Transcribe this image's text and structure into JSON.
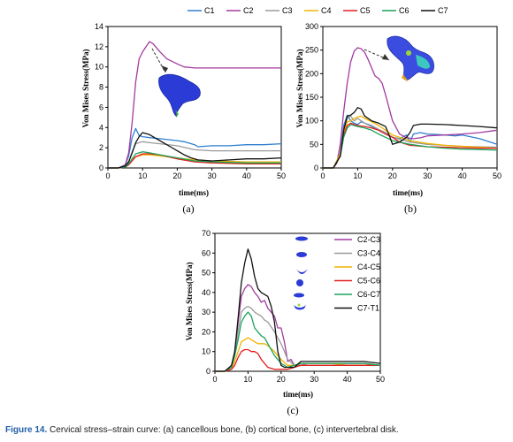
{
  "legend_top": [
    "C1",
    "C2",
    "C3",
    "C4",
    "C5",
    "C6",
    "C7"
  ],
  "colors": {
    "C1": "#2f7fd0",
    "C2": "#a23ba0",
    "C3": "#9a9a9a",
    "C4": "#f0b400",
    "C5": "#e21f1f",
    "C6": "#1aa35b",
    "C7": "#111111"
  },
  "caption": {
    "figure_number": "Figure 14.",
    "text": "Cervical stress–strain curve: (a) cancellous bone, (b) cortical bone, (c) intervertebral disk."
  },
  "chart_data": [
    {
      "id": "a",
      "panel_label": "(a)",
      "type": "line",
      "xlabel": "time(ms)",
      "ylabel": "Von Mises Stress(MPa)",
      "xlim": [
        0,
        50
      ],
      "ylim": [
        0,
        14
      ],
      "xticks": [
        0,
        10,
        20,
        30,
        40,
        50
      ],
      "yticks": [
        0,
        2,
        4,
        6,
        8,
        10,
        12,
        14
      ],
      "series": [
        {
          "name": "C1",
          "x": [
            0,
            3,
            5,
            6,
            7,
            8,
            9,
            10,
            12,
            15,
            20,
            22,
            25,
            26,
            30,
            35,
            40,
            45,
            50
          ],
          "y": [
            0,
            0,
            0.3,
            1.2,
            3.0,
            3.9,
            3.2,
            3.1,
            3.0,
            2.9,
            2.7,
            2.6,
            2.3,
            2.1,
            2.2,
            2.2,
            2.3,
            2.3,
            2.4
          ]
        },
        {
          "name": "C2",
          "x": [
            0,
            3,
            5,
            6,
            7,
            8,
            9,
            10,
            11,
            12,
            13,
            15,
            17,
            20,
            22,
            25,
            30,
            35,
            40,
            45,
            50
          ],
          "y": [
            0,
            0,
            0.3,
            1.5,
            4.5,
            8.5,
            10.8,
            11.5,
            12.0,
            12.5,
            12.3,
            11.5,
            10.8,
            10.3,
            10.0,
            9.9,
            9.9,
            9.9,
            9.9,
            9.9,
            9.9
          ]
        },
        {
          "name": "C3",
          "x": [
            0,
            3,
            5,
            6,
            7,
            8,
            9,
            10,
            12,
            15,
            20,
            25,
            30,
            35,
            40,
            45,
            50
          ],
          "y": [
            0,
            0,
            0.2,
            0.6,
            1.6,
            2.4,
            2.5,
            2.6,
            2.5,
            2.4,
            2.2,
            1.8,
            1.7,
            1.7,
            1.7,
            1.7,
            1.7
          ]
        },
        {
          "name": "C4",
          "x": [
            0,
            3,
            5,
            6,
            7,
            8,
            10,
            12,
            15,
            20,
            25,
            30,
            40,
            50
          ],
          "y": [
            0,
            0,
            0.1,
            0.4,
            0.8,
            1.1,
            1.3,
            1.3,
            1.2,
            1.0,
            0.8,
            0.7,
            0.6,
            0.6
          ]
        },
        {
          "name": "C5",
          "x": [
            0,
            3,
            5,
            6,
            7,
            8,
            10,
            12,
            15,
            20,
            25,
            30,
            40,
            50
          ],
          "y": [
            0,
            0,
            0.1,
            0.3,
            0.7,
            1.1,
            1.4,
            1.4,
            1.3,
            0.9,
            0.6,
            0.5,
            0.4,
            0.4
          ]
        },
        {
          "name": "C6",
          "x": [
            0,
            3,
            5,
            6,
            7,
            8,
            10,
            12,
            15,
            20,
            25,
            30,
            40,
            50
          ],
          "y": [
            0,
            0,
            0.1,
            0.4,
            0.9,
            1.4,
            1.6,
            1.5,
            1.3,
            1.0,
            0.7,
            0.6,
            0.5,
            0.5
          ]
        },
        {
          "name": "C7",
          "x": [
            0,
            3,
            5,
            6,
            7,
            8,
            9,
            10,
            11,
            12,
            14,
            16,
            18,
            20,
            22,
            24,
            26,
            30,
            35,
            40,
            45,
            50
          ],
          "y": [
            0,
            0,
            0.2,
            0.6,
            1.5,
            2.5,
            3.1,
            3.5,
            3.4,
            3.3,
            2.9,
            2.5,
            2.1,
            1.7,
            1.3,
            1.0,
            0.8,
            0.7,
            0.8,
            0.9,
            0.9,
            1.0
          ]
        }
      ]
    },
    {
      "id": "b",
      "panel_label": "(b)",
      "type": "line",
      "xlabel": "time(ms)",
      "ylabel": "Von Mises Stress(MPa)",
      "xlim": [
        0,
        50
      ],
      "ylim": [
        0,
        300
      ],
      "xticks": [
        0,
        10,
        20,
        30,
        40,
        50
      ],
      "yticks": [
        0,
        50,
        100,
        150,
        200,
        250,
        300
      ],
      "series": [
        {
          "name": "C1",
          "x": [
            0,
            3,
            5,
            6,
            7,
            8,
            9,
            10,
            11,
            12,
            14,
            16,
            18,
            20,
            22,
            24,
            25,
            26,
            28,
            30,
            35,
            38,
            40,
            45,
            50
          ],
          "y": [
            0,
            0,
            30,
            90,
            112,
            100,
            95,
            92,
            98,
            95,
            88,
            80,
            72,
            65,
            62,
            70,
            55,
            72,
            75,
            72,
            70,
            68,
            70,
            62,
            50
          ]
        },
        {
          "name": "C2",
          "x": [
            0,
            3,
            4,
            5,
            6,
            7,
            8,
            9,
            10,
            11,
            12,
            13,
            14,
            15,
            16,
            17,
            18,
            20,
            22,
            24,
            26,
            28,
            30,
            35,
            40,
            45,
            50
          ],
          "y": [
            0,
            0,
            10,
            50,
            120,
            180,
            225,
            248,
            255,
            253,
            245,
            230,
            212,
            195,
            190,
            180,
            155,
            100,
            72,
            64,
            62,
            64,
            68,
            70,
            72,
            75,
            80
          ]
        },
        {
          "name": "C3",
          "x": [
            0,
            3,
            5,
            6,
            7,
            8,
            9,
            10,
            11,
            12,
            14,
            16,
            18,
            20,
            25,
            30,
            35,
            40,
            45,
            50
          ],
          "y": [
            0,
            0,
            30,
            80,
            105,
            110,
            100,
            105,
            100,
            95,
            90,
            82,
            75,
            65,
            55,
            50,
            48,
            46,
            45,
            44
          ]
        },
        {
          "name": "C4",
          "x": [
            0,
            3,
            5,
            6,
            7,
            8,
            9,
            10,
            11,
            12,
            14,
            16,
            18,
            20,
            25,
            30,
            35,
            40,
            45,
            50
          ],
          "y": [
            0,
            0,
            30,
            75,
            98,
            100,
            105,
            108,
            110,
            105,
            98,
            90,
            80,
            70,
            58,
            52,
            48,
            46,
            44,
            42
          ]
        },
        {
          "name": "C5",
          "x": [
            0,
            3,
            5,
            6,
            7,
            8,
            9,
            10,
            12,
            14,
            16,
            18,
            20,
            22,
            25,
            30,
            35,
            40,
            45,
            50
          ],
          "y": [
            0,
            0,
            25,
            70,
            90,
            95,
            92,
            90,
            88,
            85,
            80,
            72,
            65,
            55,
            48,
            45,
            44,
            43,
            42,
            42
          ]
        },
        {
          "name": "C6",
          "x": [
            0,
            3,
            5,
            6,
            7,
            8,
            9,
            10,
            12,
            14,
            16,
            18,
            20,
            25,
            30,
            35,
            40,
            45,
            50
          ],
          "y": [
            0,
            0,
            25,
            65,
            85,
            92,
            90,
            88,
            85,
            80,
            72,
            65,
            58,
            50,
            45,
            42,
            40,
            39,
            38
          ]
        },
        {
          "name": "C7",
          "x": [
            0,
            3,
            5,
            6,
            7,
            8,
            9,
            10,
            11,
            12,
            14,
            16,
            18,
            19,
            20,
            22,
            24,
            25,
            26,
            28,
            30,
            35,
            40,
            45,
            50
          ],
          "y": [
            0,
            0,
            25,
            80,
            110,
            112,
            118,
            128,
            125,
            110,
            100,
            95,
            88,
            70,
            50,
            55,
            65,
            75,
            90,
            93,
            93,
            92,
            90,
            88,
            85
          ]
        }
      ]
    },
    {
      "id": "c",
      "panel_label": "(c)",
      "type": "line",
      "xlabel": "time(ms)",
      "ylabel": "Von Mises Stress(MPa)",
      "xlim": [
        0,
        50
      ],
      "ylim": [
        0,
        70
      ],
      "xticks": [
        0,
        10,
        20,
        30,
        40,
        50
      ],
      "yticks": [
        0,
        10,
        20,
        30,
        40,
        50,
        60,
        70
      ],
      "series": [
        {
          "name": "C2-C3",
          "x": [
            0,
            3,
            5,
            6,
            7,
            8,
            9,
            10,
            11,
            12,
            13,
            14,
            15,
            16,
            17,
            18,
            19,
            20,
            21,
            22,
            23,
            24,
            26,
            28,
            30,
            35,
            40,
            45,
            50
          ],
          "y": [
            0,
            0,
            2,
            10,
            25,
            38,
            42,
            44,
            43,
            40,
            38,
            35,
            36,
            32,
            30,
            28,
            22,
            22,
            15,
            5,
            6,
            3,
            3,
            4,
            4,
            4,
            4,
            4,
            3
          ]
        },
        {
          "name": "C3-C4",
          "x": [
            0,
            3,
            5,
            6,
            7,
            8,
            9,
            10,
            11,
            12,
            13,
            14,
            15,
            16,
            18,
            20,
            22,
            24,
            26,
            28,
            30,
            35,
            40,
            45,
            50
          ],
          "y": [
            0,
            0,
            2,
            8,
            20,
            30,
            32,
            33,
            32,
            30,
            29,
            28,
            26,
            25,
            20,
            14,
            6,
            3,
            3,
            4,
            4,
            4,
            4,
            4,
            3
          ]
        },
        {
          "name": "C4-C5",
          "x": [
            0,
            3,
            5,
            6,
            7,
            8,
            9,
            10,
            11,
            12,
            13,
            14,
            15,
            16,
            18,
            20,
            22,
            24,
            26,
            28,
            30,
            35,
            40,
            45,
            50
          ],
          "y": [
            0,
            0,
            1,
            5,
            10,
            15,
            16,
            17,
            16,
            15,
            14,
            14,
            14,
            13,
            10,
            6,
            3,
            3,
            4,
            4,
            4,
            4,
            3,
            3,
            3
          ]
        },
        {
          "name": "C5-C6",
          "x": [
            0,
            3,
            5,
            6,
            7,
            8,
            9,
            10,
            11,
            12,
            13,
            14,
            15,
            16,
            18,
            20,
            22,
            24,
            26,
            28,
            30,
            35,
            40,
            45,
            50
          ],
          "y": [
            0,
            0,
            1,
            3,
            7,
            10,
            11,
            11,
            10,
            10,
            9,
            6,
            4,
            2,
            1,
            1,
            1,
            2,
            3,
            3,
            3,
            3,
            3,
            3,
            3
          ]
        },
        {
          "name": "C6-C7",
          "x": [
            0,
            3,
            5,
            6,
            7,
            8,
            9,
            10,
            11,
            12,
            13,
            14,
            15,
            16,
            18,
            20,
            22,
            24,
            26,
            28,
            30,
            35,
            40,
            45,
            50
          ],
          "y": [
            0,
            0,
            2,
            8,
            16,
            25,
            28,
            30,
            28,
            22,
            20,
            18,
            17,
            14,
            8,
            4,
            2,
            3,
            4,
            4,
            4,
            4,
            4,
            4,
            3
          ]
        },
        {
          "name": "C7-T1",
          "x": [
            0,
            3,
            5,
            6,
            7,
            8,
            9,
            10,
            11,
            12,
            13,
            14,
            15,
            16,
            17,
            18,
            19,
            20,
            21,
            22,
            24,
            26,
            28,
            30,
            35,
            40,
            45,
            50
          ],
          "y": [
            0,
            0,
            3,
            10,
            27,
            45,
            55,
            62,
            57,
            48,
            42,
            40,
            39,
            38,
            33,
            25,
            10,
            3,
            2,
            2,
            2,
            5,
            5,
            5,
            5,
            5,
            5,
            4
          ]
        }
      ],
      "legend": [
        "C2-C3",
        "C3-C4",
        "C4-C5",
        "C5-C6",
        "C6-C7",
        "C7-T1"
      ],
      "legend_colors": [
        "#a23ba0",
        "#9a9a9a",
        "#f0b400",
        "#e21f1f",
        "#1aa35b",
        "#111111"
      ]
    }
  ]
}
